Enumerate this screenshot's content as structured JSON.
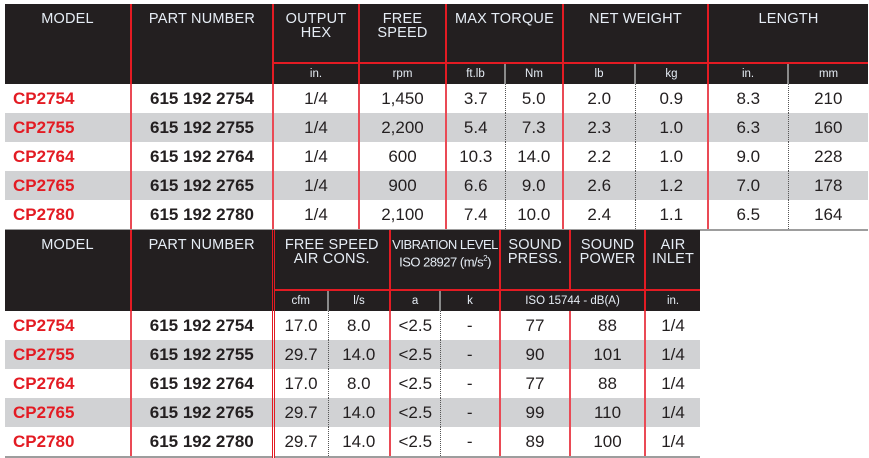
{
  "colors": {
    "accent": "#e31b23",
    "header_bg": "#231f20",
    "stripe": "#d1d2d4"
  },
  "tables": [
    {
      "groups": [
        {
          "label": "MODEL",
          "span": 1
        },
        {
          "label": "PART NUMBER",
          "span": 1
        },
        {
          "label": "OUTPUT HEX",
          "span": 1
        },
        {
          "label": "FREE SPEED",
          "span": 1
        },
        {
          "label": "MAX TORQUE",
          "span": 2
        },
        {
          "label": "NET WEIGHT",
          "span": 2
        },
        {
          "label": "LENGTH",
          "span": 2
        }
      ],
      "units": [
        "in.",
        "rpm",
        "ft.lb",
        "Nm",
        "lb",
        "kg",
        "in.",
        "mm"
      ],
      "rows": [
        [
          "CP2754",
          "615 192 2754",
          "1/4",
          "1,450",
          "3.7",
          "5.0",
          "2.0",
          "0.9",
          "8.3",
          "210"
        ],
        [
          "CP2755",
          "615 192 2755",
          "1/4",
          "2,200",
          "5.4",
          "7.3",
          "2.3",
          "1.0",
          "6.3",
          "160"
        ],
        [
          "CP2764",
          "615 192 2764",
          "1/4",
          "600",
          "10.3",
          "14.0",
          "2.2",
          "1.0",
          "9.0",
          "228"
        ],
        [
          "CP2765",
          "615 192 2765",
          "1/4",
          "900",
          "6.6",
          "9.0",
          "2.6",
          "1.2",
          "7.0",
          "178"
        ],
        [
          "CP2780",
          "615 192 2780",
          "1/4",
          "2,100",
          "7.4",
          "10.0",
          "2.4",
          "1.1",
          "6.5",
          "164"
        ]
      ]
    },
    {
      "groups": [
        {
          "label": "MODEL",
          "span": 1
        },
        {
          "label": "PART NUMBER",
          "span": 1
        },
        {
          "label": "FREE SPEED AIR CONS.",
          "span": 2
        },
        {
          "label": "VIBRATION LEVEL ISO 28927 (m/s²)",
          "span": 2
        },
        {
          "label": "SOUND PRESS.",
          "span": 1
        },
        {
          "label": "SOUND POWER",
          "span": 1
        },
        {
          "label": "AIR INLET",
          "span": 1
        }
      ],
      "units": [
        "cfm",
        "l/s",
        "a",
        "k",
        "ISO 15744 - dB(A)",
        "in."
      ],
      "rows": [
        [
          "CP2754",
          "615 192 2754",
          "17.0",
          "8.0",
          "<2.5",
          "-",
          "77",
          "88",
          "1/4"
        ],
        [
          "CP2755",
          "615 192 2755",
          "29.7",
          "14.0",
          "<2.5",
          "-",
          "90",
          "101",
          "1/4"
        ],
        [
          "CP2764",
          "615 192 2764",
          "17.0",
          "8.0",
          "<2.5",
          "-",
          "77",
          "88",
          "1/4"
        ],
        [
          "CP2765",
          "615 192 2765",
          "29.7",
          "14.0",
          "<2.5",
          "-",
          "99",
          "110",
          "1/4"
        ],
        [
          "CP2780",
          "615 192 2780",
          "29.7",
          "14.0",
          "<2.5",
          "-",
          "89",
          "100",
          "1/4"
        ]
      ]
    }
  ]
}
